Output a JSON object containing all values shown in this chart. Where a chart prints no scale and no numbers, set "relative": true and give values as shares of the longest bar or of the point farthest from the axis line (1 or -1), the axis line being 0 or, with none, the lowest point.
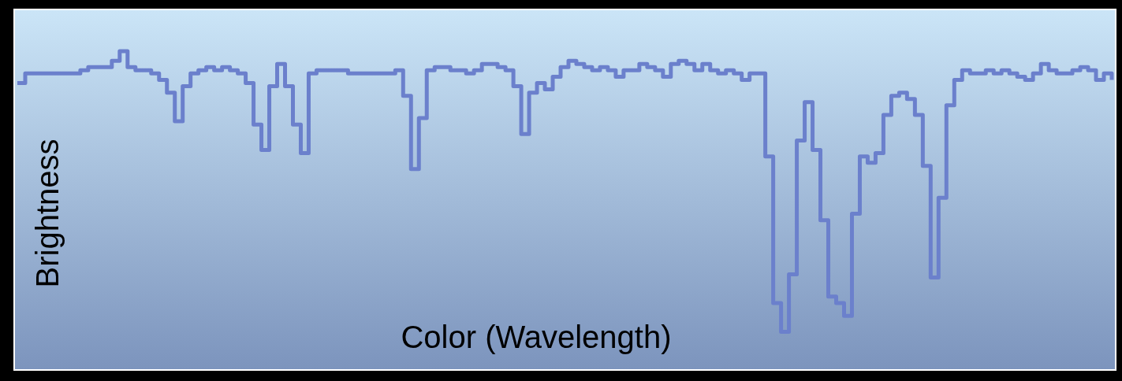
{
  "chart_data": {
    "type": "step",
    "relative": true,
    "xlabel": "Color (Wavelength)",
    "ylabel": "Brightness",
    "categories": [
      null,
      null,
      null,
      null,
      null,
      null,
      null,
      null,
      null,
      null,
      null,
      null,
      null,
      null,
      null,
      null,
      null,
      null,
      null,
      null,
      null,
      null,
      null,
      null,
      null,
      null,
      null,
      null,
      null,
      null,
      null,
      null,
      null,
      null,
      null,
      null,
      null,
      null,
      null,
      null,
      null,
      null,
      null,
      null,
      null,
      null,
      null,
      null,
      null,
      null,
      null,
      null,
      null,
      null,
      null,
      null,
      null,
      null,
      null,
      null,
      null,
      null,
      null,
      null,
      null,
      null,
      null,
      null,
      null,
      null,
      null,
      null,
      null,
      null,
      null,
      null,
      null,
      null,
      null,
      null,
      null,
      null,
      null,
      null,
      null,
      null,
      null,
      null,
      null,
      null,
      null,
      null,
      null,
      null,
      null,
      null,
      null,
      null,
      null,
      null,
      null,
      null,
      null,
      null,
      null,
      null,
      null,
      null,
      null,
      null,
      null,
      null,
      null,
      null,
      null,
      null,
      null,
      null,
      null,
      null,
      null,
      null,
      null,
      null,
      null,
      null,
      null,
      null,
      null,
      null,
      null,
      null,
      null,
      null,
      null,
      null,
      null,
      null,
      null,
      null
    ],
    "series": [
      {
        "color": "#6b80cc",
        "values": [
          0.9,
          0.93,
          0.93,
          0.93,
          0.93,
          0.93,
          0.93,
          0.93,
          0.94,
          0.95,
          0.95,
          0.95,
          0.97,
          1.0,
          0.95,
          0.94,
          0.94,
          0.93,
          0.91,
          0.87,
          0.78,
          0.89,
          0.93,
          0.94,
          0.95,
          0.94,
          0.95,
          0.94,
          0.93,
          0.9,
          0.77,
          0.69,
          0.89,
          0.96,
          0.89,
          0.77,
          0.68,
          0.93,
          0.94,
          0.94,
          0.94,
          0.94,
          0.93,
          0.93,
          0.93,
          0.93,
          0.93,
          0.93,
          0.94,
          0.86,
          0.63,
          0.79,
          0.94,
          0.95,
          0.95,
          0.94,
          0.94,
          0.93,
          0.94,
          0.96,
          0.96,
          0.95,
          0.94,
          0.89,
          0.74,
          0.87,
          0.9,
          0.88,
          0.92,
          0.95,
          0.97,
          0.96,
          0.95,
          0.94,
          0.95,
          0.94,
          0.92,
          0.94,
          0.94,
          0.96,
          0.95,
          0.94,
          0.92,
          0.96,
          0.97,
          0.96,
          0.94,
          0.96,
          0.94,
          0.93,
          0.94,
          0.93,
          0.91,
          0.93,
          0.93,
          0.67,
          0.21,
          0.12,
          0.3,
          0.72,
          0.84,
          0.69,
          0.47,
          0.23,
          0.21,
          0.17,
          0.49,
          0.67,
          0.65,
          0.68,
          0.8,
          0.86,
          0.87,
          0.85,
          0.8,
          0.64,
          0.29,
          0.54,
          0.83,
          0.91,
          0.94,
          0.93,
          0.93,
          0.94,
          0.93,
          0.94,
          0.93,
          0.92,
          0.91,
          0.93,
          0.96,
          0.94,
          0.93,
          0.93,
          0.94,
          0.95,
          0.94,
          0.91,
          0.93,
          0.91
        ]
      }
    ]
  }
}
